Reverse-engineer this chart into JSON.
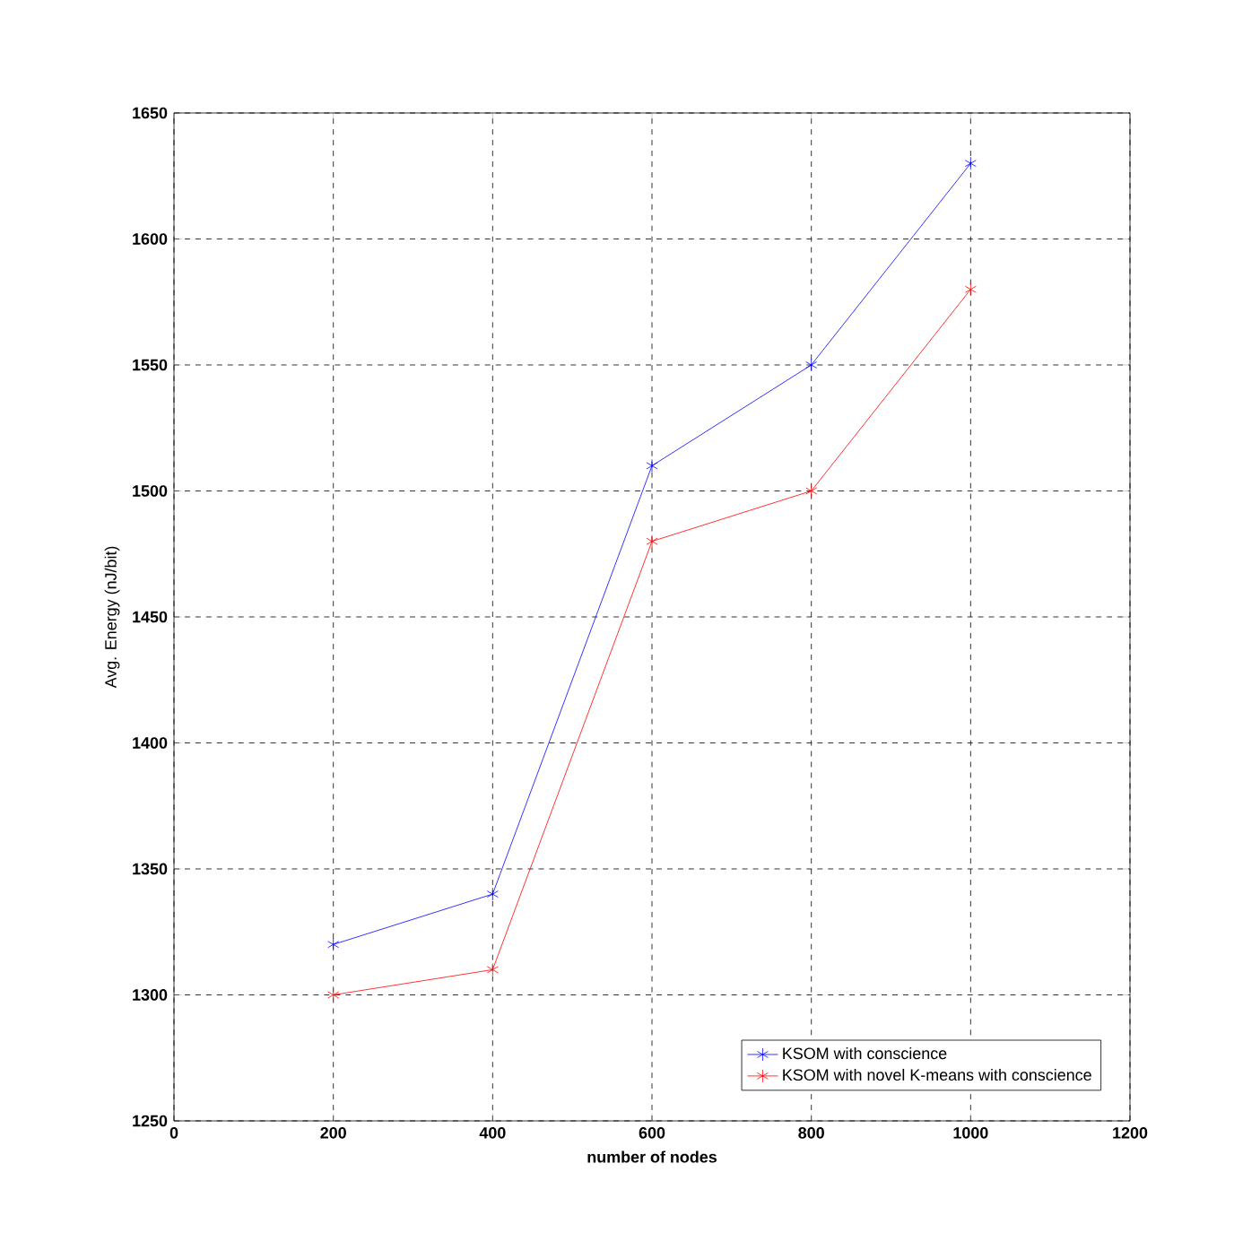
{
  "chart_data": {
    "type": "line",
    "xlabel": "number of nodes",
    "ylabel": "Avg. Energy (nJ/bit)",
    "x": [
      200,
      400,
      600,
      800,
      1000
    ],
    "series": [
      {
        "name": "KSOM with conscience",
        "color": "#0000ff",
        "values": [
          1320,
          1340,
          1510,
          1550,
          1630
        ]
      },
      {
        "name": "KSOM with novel K-means with conscience",
        "color": "#ff0000",
        "values": [
          1300,
          1310,
          1480,
          1500,
          1580
        ]
      }
    ],
    "xlim": [
      0,
      1200
    ],
    "xticks": [
      0,
      200,
      400,
      600,
      800,
      1000,
      1200
    ],
    "ylim": [
      1250,
      1650
    ],
    "yticks": [
      1250,
      1300,
      1350,
      1400,
      1450,
      1500,
      1550,
      1600,
      1650
    ],
    "grid": true,
    "legend": "bottom right",
    "marker": "cross",
    "line_style": "solid"
  }
}
